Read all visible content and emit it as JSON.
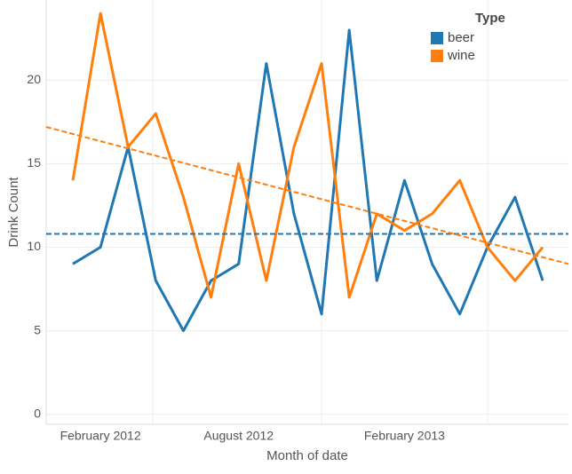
{
  "chart_data": {
    "type": "line",
    "x_label": "Month of date",
    "y_label": "Drink Count",
    "legend_title": "Type",
    "legend": "top-right",
    "categories": [
      null,
      "February 2012",
      null,
      null,
      null,
      null,
      "August 2012",
      null,
      null,
      null,
      null,
      null,
      "February 2013",
      null,
      null,
      null,
      null,
      null
    ],
    "series": [
      {
        "name": "beer",
        "color": "#1f77b4",
        "values": [
          9,
          10,
          16,
          8,
          5,
          8,
          9,
          21,
          12,
          6,
          23,
          8,
          14,
          9,
          6,
          10,
          13,
          8
        ]
      },
      {
        "name": "wine",
        "color": "#ff7f0e",
        "values": [
          14,
          24,
          16,
          18,
          13,
          7,
          15,
          8,
          16,
          21,
          7,
          12,
          11,
          12,
          14,
          10,
          8,
          10
        ]
      }
    ],
    "trendlines": [
      {
        "start": 10.8,
        "end": 10.8
      },
      {
        "start": 17.2,
        "end": 9.0
      }
    ],
    "ylim": [
      -0.6,
      24.8
    ],
    "yticks": [
      0,
      5,
      10,
      15,
      20
    ],
    "grid": true
  }
}
